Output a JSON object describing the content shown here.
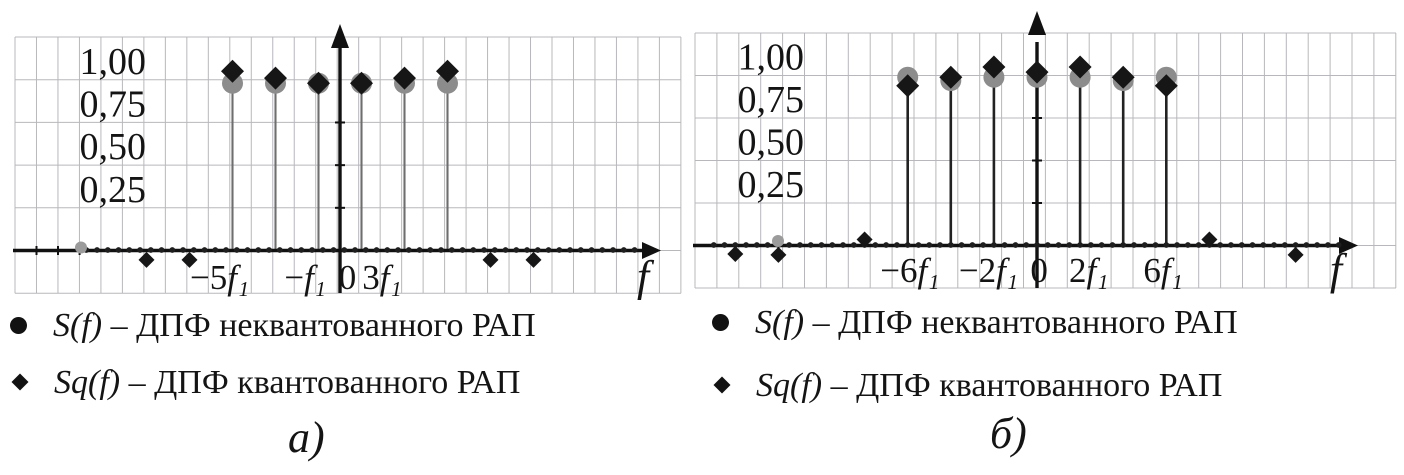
{
  "legend": {
    "series": [
      {
        "marker": "circle",
        "math": "S(f)",
        "text": " – ДПФ неквантованного РАП"
      },
      {
        "marker": "diamond",
        "math": "Sq(f)",
        "text": " – ДПФ квантованного РАП"
      }
    ]
  },
  "captions": {
    "a": "а)",
    "b": "б)"
  },
  "colors": {
    "s_marker": "#8c8c8c",
    "sq_marker": "#161616",
    "grid": "#b8b8bc",
    "axis": "#111111",
    "stem_a": "#6e6e6e",
    "stem_b": "#222222",
    "axis_dot": "#1e1e1e",
    "start_circle": "#9b9b9b"
  },
  "chart_data": [
    {
      "panel": "а)",
      "type": "stem",
      "xlabel": "f",
      "x_unit": "f₁",
      "xlim": [
        -15.1,
        15.9
      ],
      "ylim": [
        -0.25,
        1.25
      ],
      "grid": true,
      "y_ticks": [
        {
          "value": 1.0,
          "label": "1,00"
        },
        {
          "value": 0.75,
          "label": "0,75"
        },
        {
          "value": 0.5,
          "label": "0,50"
        },
        {
          "value": 0.25,
          "label": "0,25"
        }
      ],
      "x_ticks": [
        {
          "x": -5.6,
          "label": "−5f₁"
        },
        {
          "x": -1.62,
          "label": "−f₁"
        },
        {
          "x": 0.35,
          "label": "0"
        },
        {
          "x": 1.95,
          "label": "3f₁"
        }
      ],
      "stems": [
        -5,
        -3,
        -1,
        1,
        3,
        5
      ],
      "series": [
        {
          "name": "S(f)",
          "marker": "circle",
          "points": [
            [
              -5,
              0.98
            ],
            [
              -3,
              0.98
            ],
            [
              -1,
              0.98
            ],
            [
              1,
              0.98
            ],
            [
              3,
              0.98
            ],
            [
              5,
              0.98
            ]
          ]
        },
        {
          "name": "Sq(f)",
          "marker": "diamond",
          "points": [
            [
              -5,
              1.05
            ],
            [
              -3,
              1.01
            ],
            [
              -1,
              0.98
            ],
            [
              1,
              0.98
            ],
            [
              3,
              1.01
            ],
            [
              5,
              1.05
            ]
          ],
          "small_points": [
            [
              -9,
              -0.055
            ],
            [
              -7,
              -0.055
            ],
            [
              7,
              -0.055
            ],
            [
              9,
              -0.055
            ]
          ]
        }
      ],
      "zero_samples": {
        "from": -11.8,
        "to": 14.0,
        "step": 0.5,
        "y": 0
      }
    },
    {
      "panel": "б)",
      "type": "stem",
      "xlabel": "f",
      "x_unit": "f₁",
      "xlim": [
        -15.9,
        16.7
      ],
      "ylim": [
        -0.25,
        1.25
      ],
      "grid": true,
      "y_ticks": [
        {
          "value": 1.0,
          "label": "1,00"
        },
        {
          "value": 0.75,
          "label": "0,75"
        },
        {
          "value": 0.5,
          "label": "0,50"
        },
        {
          "value": 0.25,
          "label": "0,25"
        }
      ],
      "x_ticks": [
        {
          "x": -5.9,
          "label": "−6f₁"
        },
        {
          "x": -2.25,
          "label": "−2f₁"
        },
        {
          "x": 0.1,
          "label": "0"
        },
        {
          "x": 2.4,
          "label": "2f₁"
        },
        {
          "x": 5.85,
          "label": "6f₁"
        }
      ],
      "stems": [
        -6,
        -4,
        -2,
        2,
        4,
        6
      ],
      "series": [
        {
          "name": "S(f)",
          "marker": "circle",
          "points": [
            [
              -6,
              0.99
            ],
            [
              -4,
              0.97
            ],
            [
              -2,
              0.99
            ],
            [
              0,
              0.99
            ],
            [
              2,
              0.99
            ],
            [
              4,
              0.97
            ],
            [
              6,
              0.99
            ]
          ]
        },
        {
          "name": "Sq(f)",
          "marker": "diamond",
          "points": [
            [
              -6,
              0.94
            ],
            [
              -4,
              0.99
            ],
            [
              -2,
              1.05
            ],
            [
              0,
              1.02
            ],
            [
              2,
              1.05
            ],
            [
              4,
              0.99
            ],
            [
              6,
              0.94
            ]
          ],
          "small_points": [
            [
              -14,
              -0.05
            ],
            [
              -12,
              -0.055
            ],
            [
              -8,
              0.035
            ],
            [
              8,
              0.035
            ],
            [
              12,
              -0.055
            ]
          ]
        }
      ],
      "zero_samples": {
        "from": -15.0,
        "to": 14.3,
        "step": 0.5,
        "y": 0
      }
    }
  ]
}
